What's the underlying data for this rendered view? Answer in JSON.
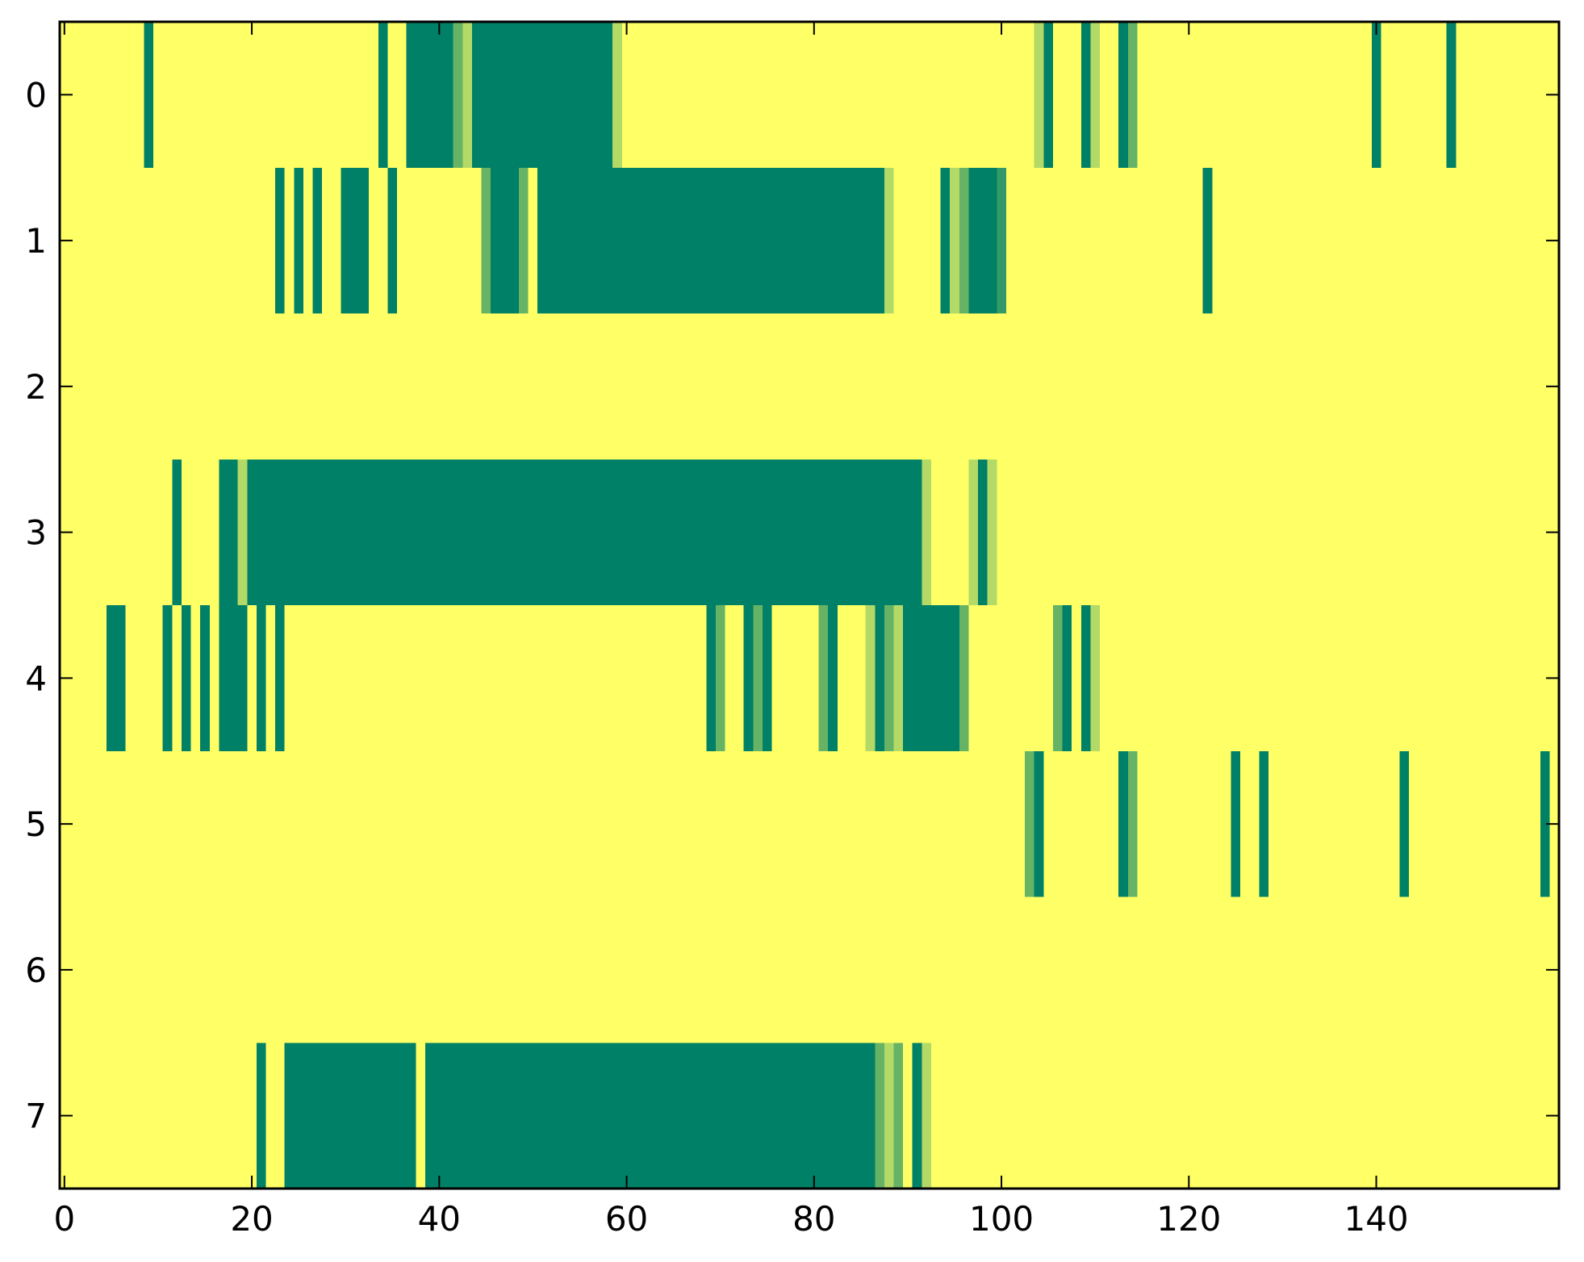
{
  "chart_data": {
    "type": "heatmap",
    "title": "",
    "xlabel": "",
    "ylabel": "",
    "x_range": [
      -0.5,
      159.5
    ],
    "y_range": [
      -0.5,
      7.5
    ],
    "x_ticks": [
      0,
      20,
      40,
      60,
      80,
      100,
      120,
      140
    ],
    "x_tick_labels": [
      "0",
      "20",
      "40",
      "60",
      "80",
      "100",
      "120",
      "140"
    ],
    "y_ticks": [
      0,
      1,
      2,
      3,
      4,
      5,
      6,
      7
    ],
    "y_tick_labels": [
      "0",
      "1",
      "2",
      "3",
      "4",
      "5",
      "6",
      "7"
    ],
    "colormap": "summer_r",
    "value_range": [
      0,
      1
    ],
    "colors": {
      "low": "#ffff66",
      "high": "#008066"
    },
    "grid": false,
    "legend": "none",
    "background_value": 0,
    "rows": [
      {
        "row": 0,
        "cells": [
          [
            9,
            9,
            1
          ],
          [
            34,
            34,
            1
          ],
          [
            37,
            41,
            1
          ],
          [
            42,
            42,
            0.6
          ],
          [
            43,
            43,
            0.3
          ],
          [
            44,
            58,
            1
          ],
          [
            59,
            59,
            0.3
          ],
          [
            104,
            104,
            0.3
          ],
          [
            105,
            105,
            1
          ],
          [
            109,
            109,
            1
          ],
          [
            110,
            110,
            0.3
          ],
          [
            113,
            113,
            1
          ],
          [
            114,
            114,
            0.6
          ],
          [
            140,
            140,
            1
          ],
          [
            148,
            148,
            1
          ]
        ]
      },
      {
        "row": 1,
        "cells": [
          [
            23,
            23,
            1
          ],
          [
            25,
            25,
            1
          ],
          [
            27,
            27,
            1
          ],
          [
            30,
            32,
            1
          ],
          [
            35,
            35,
            1
          ],
          [
            45,
            45,
            0.6
          ],
          [
            46,
            48,
            1
          ],
          [
            49,
            49,
            0.6
          ],
          [
            51,
            87,
            1
          ],
          [
            88,
            88,
            0.3
          ],
          [
            94,
            94,
            1
          ],
          [
            95,
            95,
            0.3
          ],
          [
            96,
            96,
            0.6
          ],
          [
            97,
            99,
            1
          ],
          [
            100,
            100,
            0.8
          ],
          [
            122,
            122,
            1
          ]
        ]
      },
      {
        "row": 3,
        "cells": [
          [
            12,
            12,
            1
          ],
          [
            17,
            18,
            1
          ],
          [
            19,
            19,
            0.3
          ],
          [
            20,
            91,
            1
          ],
          [
            92,
            92,
            0.3
          ],
          [
            97,
            97,
            0.3
          ],
          [
            98,
            98,
            1
          ],
          [
            99,
            99,
            0.3
          ]
        ]
      },
      {
        "row": 4,
        "cells": [
          [
            5,
            6,
            1
          ],
          [
            11,
            11,
            1
          ],
          [
            13,
            13,
            1
          ],
          [
            15,
            15,
            1
          ],
          [
            17,
            19,
            1
          ],
          [
            21,
            21,
            1
          ],
          [
            23,
            23,
            1
          ],
          [
            69,
            69,
            1
          ],
          [
            70,
            70,
            0.6
          ],
          [
            73,
            73,
            1
          ],
          [
            74,
            74,
            0.6
          ],
          [
            75,
            75,
            1
          ],
          [
            81,
            81,
            0.6
          ],
          [
            82,
            82,
            1
          ],
          [
            86,
            86,
            0.3
          ],
          [
            87,
            87,
            1
          ],
          [
            88,
            88,
            0.6
          ],
          [
            89,
            89,
            0.3
          ],
          [
            90,
            95,
            1
          ],
          [
            96,
            96,
            0.6
          ],
          [
            106,
            106,
            0.6
          ],
          [
            107,
            107,
            1
          ],
          [
            109,
            109,
            1
          ],
          [
            110,
            110,
            0.3
          ]
        ]
      },
      {
        "row": 5,
        "cells": [
          [
            103,
            103,
            0.6
          ],
          [
            104,
            104,
            1
          ],
          [
            113,
            113,
            1
          ],
          [
            114,
            114,
            0.6
          ],
          [
            125,
            125,
            1
          ],
          [
            128,
            128,
            1
          ],
          [
            143,
            143,
            1
          ],
          [
            158,
            158,
            1
          ]
        ]
      },
      {
        "row": 7,
        "cells": [
          [
            21,
            21,
            1
          ],
          [
            24,
            37,
            1
          ],
          [
            39,
            86,
            1
          ],
          [
            87,
            87,
            0.6
          ],
          [
            88,
            88,
            0.3
          ],
          [
            89,
            89,
            0.6
          ],
          [
            91,
            91,
            1
          ],
          [
            92,
            92,
            0.3
          ]
        ]
      }
    ]
  }
}
